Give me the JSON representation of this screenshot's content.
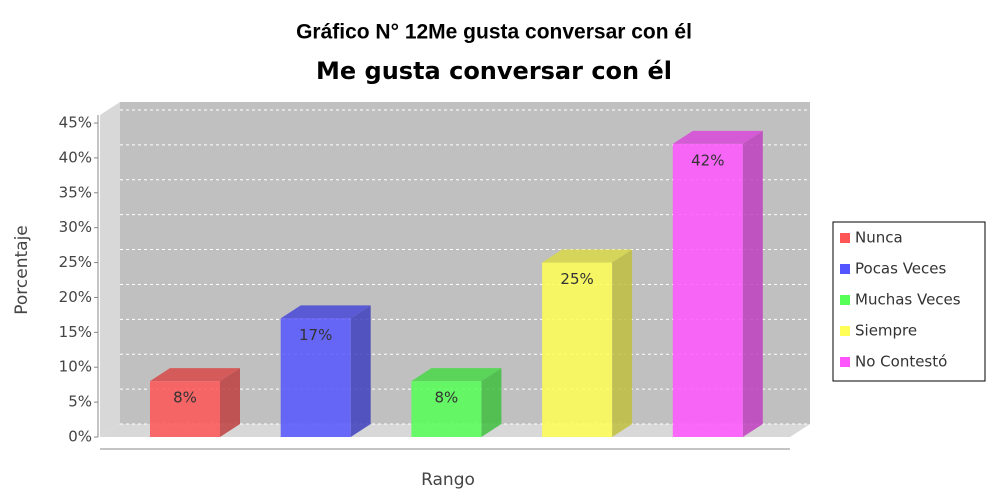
{
  "header": "Gráfico N° 12Me gusta conversar con él",
  "chart_data": {
    "type": "bar3d",
    "title": "Me gusta conversar con él",
    "y_label": "Porcentaje",
    "x_label": "Rango",
    "series": [
      {
        "name": "Nunca",
        "color": "#ff5555",
        "values": [
          8
        ],
        "value_labels": [
          "8%"
        ]
      },
      {
        "name": "Pocas Veces",
        "color": "#5555ff",
        "values": [
          17
        ],
        "value_labels": [
          "17%"
        ]
      },
      {
        "name": "Muchas Veces",
        "color": "#55ff55",
        "values": [
          8
        ],
        "value_labels": [
          "8%"
        ]
      },
      {
        "name": "Siempre",
        "color": "#ffff55",
        "values": [
          25
        ],
        "value_labels": [
          "25%"
        ]
      },
      {
        "name": "No Contestó",
        "color": "#ff55ff",
        "values": [
          42
        ],
        "value_labels": [
          "42%"
        ]
      }
    ],
    "ylim": [
      0,
      45
    ],
    "yticks": [
      {
        "value": 0,
        "label": "0%"
      },
      {
        "value": 5,
        "label": "5%"
      },
      {
        "value": 10,
        "label": "10%"
      },
      {
        "value": 15,
        "label": "15%"
      },
      {
        "value": 20,
        "label": "20%"
      },
      {
        "value": 25,
        "label": "25%"
      },
      {
        "value": 30,
        "label": "30%"
      },
      {
        "value": 35,
        "label": "35%"
      },
      {
        "value": 40,
        "label": "40%"
      },
      {
        "value": 45,
        "label": "45%"
      }
    ],
    "grid": true,
    "legend": "right"
  }
}
